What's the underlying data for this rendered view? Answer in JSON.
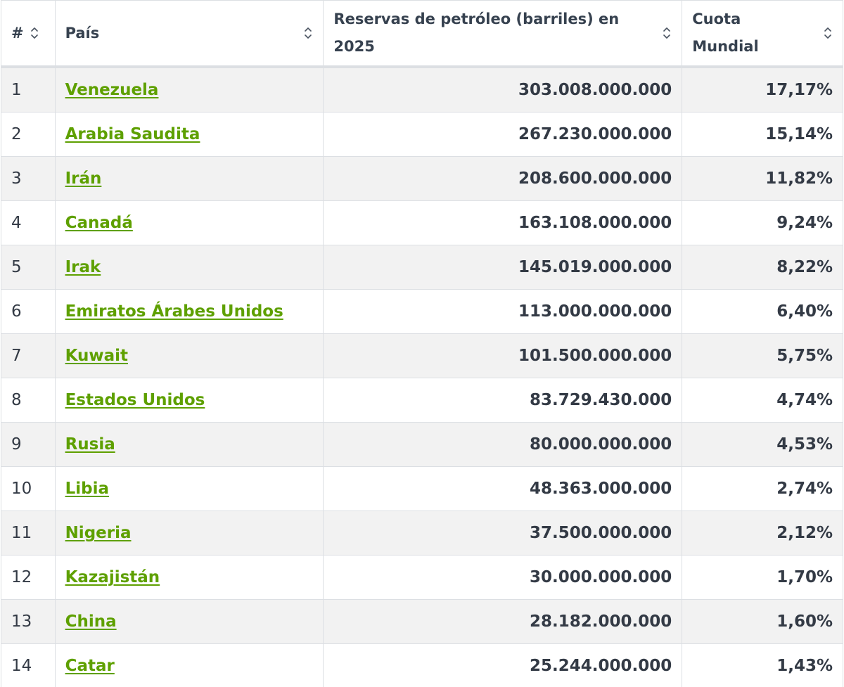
{
  "table": {
    "headers": {
      "rank": "#",
      "country": "País",
      "reserves_line1": "Reservas de petróleo (barriles) en",
      "reserves_line2": "2025",
      "share_line1": "Cuota",
      "share_line2": "Mundial"
    },
    "sort_icon": "sort-updown-icon",
    "colors": {
      "link": "#5ea000",
      "stripe": "#f2f2f2",
      "border": "#dcdfe3",
      "text": "#333a45"
    },
    "rows": [
      {
        "rank": "1",
        "country": "Venezuela",
        "reserves": "303.008.000.000",
        "share": "17,17%"
      },
      {
        "rank": "2",
        "country": "Arabia Saudita",
        "reserves": "267.230.000.000",
        "share": "15,14%"
      },
      {
        "rank": "3",
        "country": "Irán",
        "reserves": "208.600.000.000",
        "share": "11,82%"
      },
      {
        "rank": "4",
        "country": "Canadá",
        "reserves": "163.108.000.000",
        "share": "9,24%"
      },
      {
        "rank": "5",
        "country": "Irak",
        "reserves": "145.019.000.000",
        "share": "8,22%"
      },
      {
        "rank": "6",
        "country": "Emiratos Árabes Unidos",
        "reserves": "113.000.000.000",
        "share": "6,40%"
      },
      {
        "rank": "7",
        "country": "Kuwait",
        "reserves": "101.500.000.000",
        "share": "5,75%"
      },
      {
        "rank": "8",
        "country": "Estados Unidos",
        "reserves": "83.729.430.000",
        "share": "4,74%"
      },
      {
        "rank": "9",
        "country": "Rusia",
        "reserves": "80.000.000.000",
        "share": "4,53%"
      },
      {
        "rank": "10",
        "country": "Libia",
        "reserves": "48.363.000.000",
        "share": "2,74%"
      },
      {
        "rank": "11",
        "country": "Nigeria",
        "reserves": "37.500.000.000",
        "share": "2,12%"
      },
      {
        "rank": "12",
        "country": "Kazajistán",
        "reserves": "30.000.000.000",
        "share": "1,70%"
      },
      {
        "rank": "13",
        "country": "China",
        "reserves": "28.182.000.000",
        "share": "1,60%"
      },
      {
        "rank": "14",
        "country": "Catar",
        "reserves": "25.244.000.000",
        "share": "1,43%"
      }
    ]
  }
}
